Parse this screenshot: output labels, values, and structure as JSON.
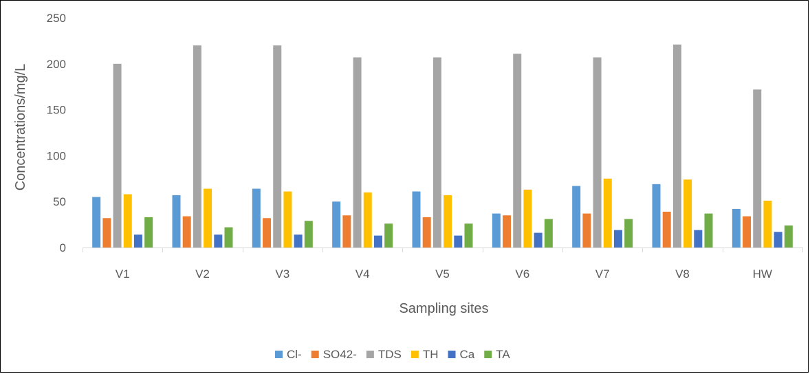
{
  "chart_data": {
    "type": "bar",
    "title": "",
    "xlabel": "Sampling sites",
    "ylabel": "Concentrations/mg/L",
    "ylim": [
      0,
      250
    ],
    "yticks": [
      0,
      50,
      100,
      150,
      200,
      250
    ],
    "grid": false,
    "legend_position": "bottom",
    "categories": [
      "V1",
      "V2",
      "V3",
      "V4",
      "V5",
      "V6",
      "V7",
      "V8",
      "HW"
    ],
    "series": [
      {
        "name": "Cl-",
        "color": "#5B9BD5",
        "values": [
          55,
          57,
          64,
          50,
          61,
          37,
          67,
          69,
          42
        ]
      },
      {
        "name": "SO42-",
        "color": "#ED7D31",
        "values": [
          32,
          34,
          32,
          35,
          33,
          35,
          37,
          39,
          34
        ]
      },
      {
        "name": "TDS",
        "color": "#A5A5A5",
        "values": [
          200,
          220,
          220,
          207,
          207,
          211,
          207,
          221,
          172
        ]
      },
      {
        "name": "TH",
        "color": "#FFC000",
        "values": [
          58,
          64,
          61,
          60,
          57,
          63,
          75,
          74,
          51
        ]
      },
      {
        "name": "Ca",
        "color": "#4472C4",
        "values": [
          14,
          14,
          14,
          13,
          13,
          16,
          19,
          19,
          17
        ]
      },
      {
        "name": "TA",
        "color": "#70AD47",
        "values": [
          33,
          22,
          29,
          26,
          26,
          31,
          31,
          37,
          24
        ]
      }
    ]
  }
}
